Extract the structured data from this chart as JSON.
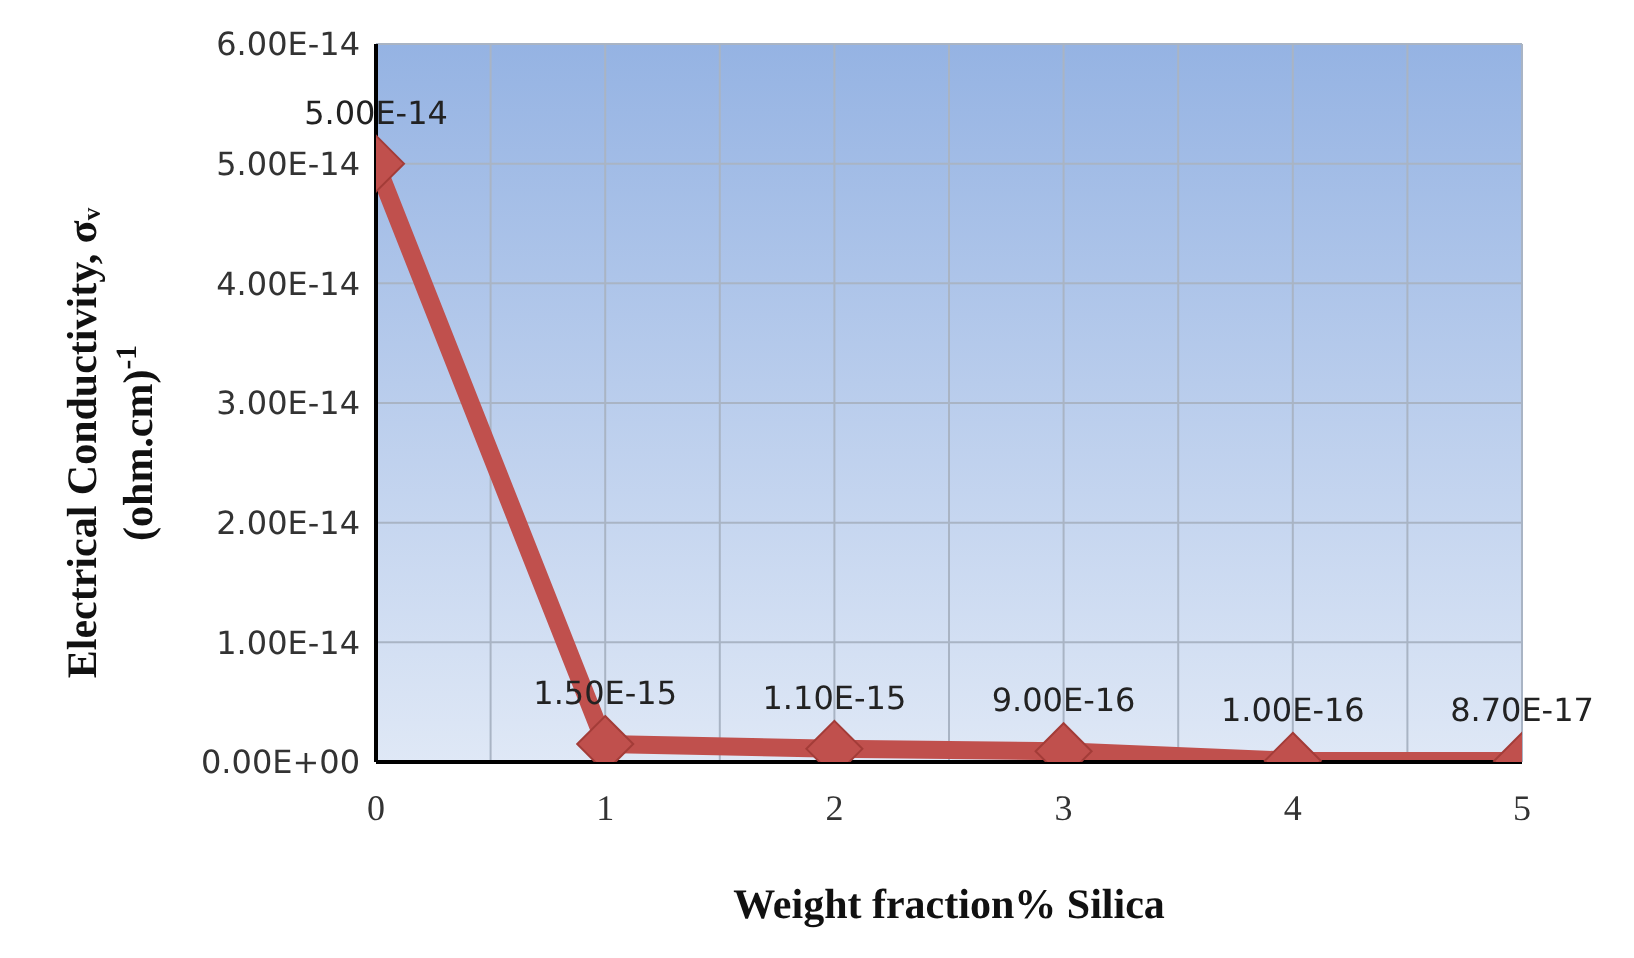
{
  "chart_data": {
    "type": "line",
    "xlabel": "Weight fraction% Silica",
    "ylabel": "Electrical Conductivity, σᵥ\n(ohm.cm)$^{-1}$",
    "x": [
      0,
      1,
      2,
      3,
      4,
      5
    ],
    "series": [
      {
        "color": "#c0504d",
        "values": [
          5e-14,
          1.5e-15,
          1.1e-15,
          9e-16,
          1e-16,
          8.7e-17
        ],
        "value_labels": [
          "5.00E-14",
          "1.50E-15",
          "1.10E-15",
          "9.00E-16",
          "1.00E-16",
          "8.70E-17"
        ]
      }
    ],
    "xlim": [
      0,
      5
    ],
    "xticks": [
      0,
      {
        "value": 0.5,
        "label": null
      },
      1,
      {
        "value": 1.5,
        "label": null
      },
      2,
      {
        "value": 2.5,
        "label": null
      },
      3,
      {
        "value": 3.5,
        "label": null
      },
      4,
      {
        "value": 4.5,
        "label": null
      },
      5
    ],
    "ylim": [
      0,
      6e-14
    ],
    "yticks": [
      {
        "value": 0,
        "label": "0.00E+00"
      },
      {
        "value": 1e-14,
        "label": "1.00E-14"
      },
      {
        "value": 2e-14,
        "label": "2.00E-14"
      },
      {
        "value": 3e-14,
        "label": "3.00E-14"
      },
      {
        "value": 4e-14,
        "label": "4.00E-14"
      },
      {
        "value": 5e-14,
        "label": "5.00E-14"
      },
      {
        "value": 6e-14,
        "label": "6.00E-14"
      }
    ],
    "grid": true,
    "marker": "diamond",
    "line_style": "solid",
    "legend": false
  }
}
